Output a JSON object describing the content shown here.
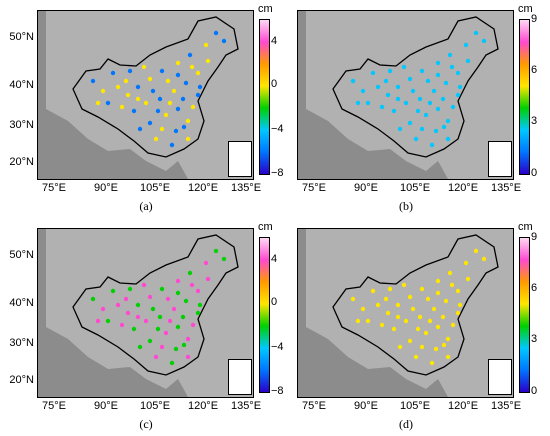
{
  "unit": "cm",
  "x_ticks": [
    "75°E",
    "90°E",
    "105°E",
    "120°E",
    "135°E"
  ],
  "y_ticks": [
    "50°N",
    "40°N",
    "30°N",
    "20°N"
  ],
  "panels": [
    {
      "caption": "(a)",
      "cbar_ticks": [
        "4",
        "0",
        "−4",
        "−8"
      ],
      "colormap": "diverging"
    },
    {
      "caption": "(b)",
      "cbar_ticks": [
        "9",
        "6",
        "3",
        "0"
      ],
      "colormap": "sequential"
    },
    {
      "caption": "(c)",
      "cbar_ticks": [
        "4",
        "0",
        "−4",
        "−8"
      ],
      "colormap": "diverging"
    },
    {
      "caption": "(d)",
      "cbar_ticks": [
        "9",
        "6",
        "3",
        "0"
      ],
      "colormap": "sequential"
    }
  ],
  "colors": {
    "diverging_scale": [
      "#2b00c8",
      "#0076ff",
      "#00c8ff",
      "#00d000",
      "#ffe600",
      "#ff9a00",
      "#ff4ad0",
      "#ffd8f4"
    ],
    "sequential_scale": [
      "#2b00c8",
      "#0076ff",
      "#00c8ff",
      "#00d000",
      "#ffe600",
      "#ff9a00",
      "#ff4ad0",
      "#ffd8f4"
    ],
    "map_background": "#8c8c8c",
    "land_texture": "#cfcfcf"
  }
}
